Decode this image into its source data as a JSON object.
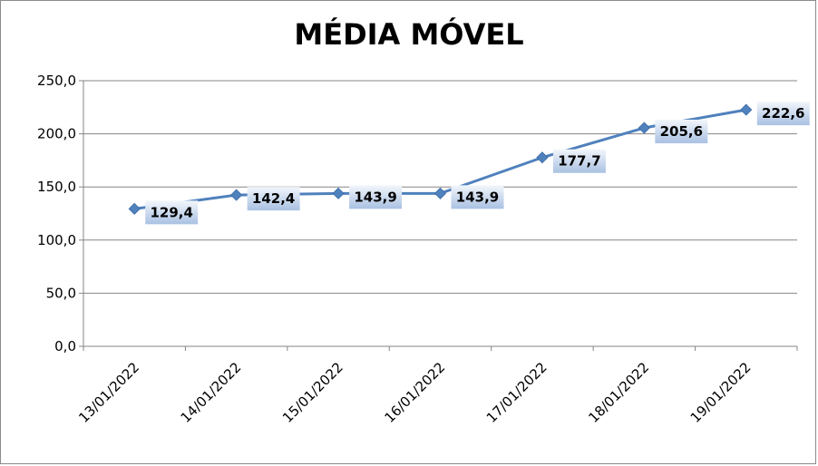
{
  "chart_data": {
    "type": "line",
    "title": "MÉDIA MÓVEL",
    "categories": [
      "13/01/2022",
      "14/01/2022",
      "15/01/2022",
      "16/01/2022",
      "17/01/2022",
      "18/01/2022",
      "19/01/2022"
    ],
    "values": [
      129.4,
      142.4,
      143.9,
      143.9,
      177.7,
      205.6,
      222.6
    ],
    "data_labels": [
      "129,4",
      "142,4",
      "143,9",
      "143,9",
      "177,7",
      "205,6",
      "222,6"
    ],
    "y_ticks": [
      "0,0",
      "50,0",
      "100,0",
      "150,0",
      "200,0",
      "250,0"
    ],
    "ylim": [
      0,
      250
    ],
    "y_step": 50,
    "grid": true,
    "legend": "none",
    "colors": {
      "line": "#4f81bd",
      "marker": "#4f81bd",
      "grid": "#868686",
      "label_box_top": "#f2f6fb",
      "label_box_bottom": "#a9c1e2"
    }
  }
}
